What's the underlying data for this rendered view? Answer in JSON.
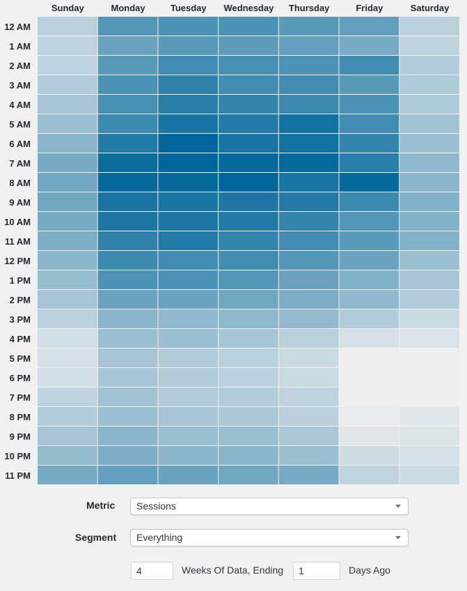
{
  "chart_data": {
    "type": "heatmap",
    "columns": [
      "Sunday",
      "Monday",
      "Tuesday",
      "Wednesday",
      "Thursday",
      "Friday",
      "Saturday"
    ],
    "rows": [
      "12 AM",
      "1 AM",
      "2 AM",
      "3 AM",
      "4 AM",
      "5 AM",
      "6 AM",
      "7 AM",
      "8 AM",
      "9 AM",
      "10 AM",
      "11 AM",
      "12 PM",
      "1 PM",
      "2 PM",
      "3 PM",
      "4 PM",
      "5 PM",
      "6 PM",
      "7 PM",
      "8 PM",
      "9 PM",
      "10 PM",
      "11 PM"
    ],
    "values": [
      [
        0.22,
        0.65,
        0.68,
        0.68,
        0.62,
        0.58,
        0.22
      ],
      [
        0.2,
        0.55,
        0.62,
        0.6,
        0.58,
        0.5,
        0.2
      ],
      [
        0.2,
        0.62,
        0.72,
        0.7,
        0.68,
        0.72,
        0.25
      ],
      [
        0.25,
        0.68,
        0.8,
        0.72,
        0.72,
        0.62,
        0.27
      ],
      [
        0.3,
        0.7,
        0.82,
        0.78,
        0.75,
        0.68,
        0.27
      ],
      [
        0.35,
        0.75,
        0.9,
        0.85,
        0.92,
        0.72,
        0.32
      ],
      [
        0.42,
        0.85,
        1.0,
        0.9,
        0.92,
        0.78,
        0.35
      ],
      [
        0.5,
        0.95,
        1.0,
        0.98,
        0.98,
        0.82,
        0.4
      ],
      [
        0.52,
        0.98,
        0.98,
        1.0,
        0.9,
        0.98,
        0.42
      ],
      [
        0.52,
        0.9,
        0.9,
        0.88,
        0.85,
        0.75,
        0.45
      ],
      [
        0.5,
        0.88,
        0.88,
        0.85,
        0.78,
        0.65,
        0.45
      ],
      [
        0.47,
        0.8,
        0.85,
        0.78,
        0.72,
        0.62,
        0.45
      ],
      [
        0.42,
        0.75,
        0.72,
        0.72,
        0.65,
        0.55,
        0.35
      ],
      [
        0.37,
        0.68,
        0.68,
        0.65,
        0.55,
        0.45,
        0.3
      ],
      [
        0.3,
        0.55,
        0.55,
        0.52,
        0.48,
        0.4,
        0.25
      ],
      [
        0.22,
        0.42,
        0.4,
        0.4,
        0.38,
        0.25,
        0.15
      ],
      [
        0.12,
        0.35,
        0.35,
        0.3,
        0.22,
        0.1,
        0.08
      ],
      [
        0.1,
        0.3,
        0.25,
        0.22,
        0.15,
        0.0,
        0.0
      ],
      [
        0.12,
        0.3,
        0.25,
        0.22,
        0.15,
        0.0,
        0.0
      ],
      [
        0.2,
        0.32,
        0.25,
        0.25,
        0.2,
        0.0,
        0.0
      ],
      [
        0.25,
        0.35,
        0.3,
        0.28,
        0.22,
        0.02,
        0.06
      ],
      [
        0.3,
        0.42,
        0.35,
        0.35,
        0.28,
        0.06,
        0.08
      ],
      [
        0.38,
        0.48,
        0.42,
        0.42,
        0.35,
        0.13,
        0.1
      ],
      [
        0.5,
        0.58,
        0.55,
        0.52,
        0.5,
        0.2,
        0.15
      ]
    ],
    "color_low": "#eeeeee",
    "color_high": "#006699",
    "grid": false,
    "legend": "none"
  },
  "controls": {
    "metric": {
      "label": "Metric",
      "value": "Sessions"
    },
    "segment": {
      "label": "Segment",
      "value": "Everything"
    },
    "weeks": {
      "value": "4",
      "suffix": "Weeks Of Data, Ending"
    },
    "days": {
      "value": "1",
      "suffix": "Days Ago"
    }
  }
}
